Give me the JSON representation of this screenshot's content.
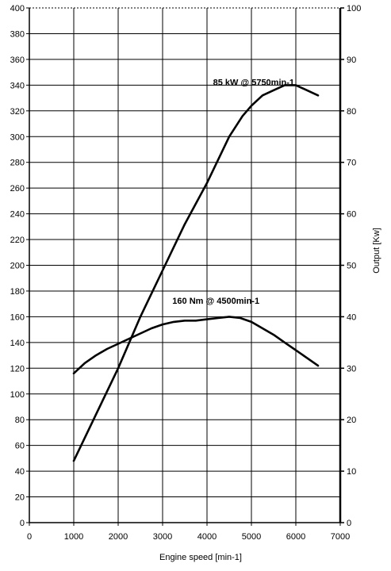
{
  "chart_data": {
    "type": "line",
    "xlabel": "Engine speed [min-1]",
    "ylabel": "",
    "y2label": "Output [Kw]",
    "xlim": [
      0,
      7000
    ],
    "ylim": [
      0,
      400
    ],
    "y2lim": [
      0,
      100
    ],
    "x_ticks": [
      0,
      1000,
      2000,
      3000,
      4000,
      5000,
      6000,
      7000
    ],
    "y_ticks": [
      0,
      20,
      40,
      60,
      80,
      100,
      120,
      140,
      160,
      180,
      200,
      220,
      240,
      260,
      280,
      300,
      320,
      340,
      360,
      380,
      400
    ],
    "y2_ticks": [
      0,
      10,
      20,
      30,
      40,
      50,
      60,
      70,
      80,
      90,
      100
    ],
    "grid": true,
    "series": [
      {
        "axis": "right",
        "x": [
          1000,
          1500,
          2000,
          2500,
          3000,
          3500,
          4000,
          4500,
          4800,
          5000,
          5250,
          5500,
          5750,
          6000,
          6250,
          6500
        ],
        "y": [
          12,
          21,
          30,
          40,
          49,
          58,
          66,
          75,
          79,
          81,
          83,
          84,
          85,
          85,
          84,
          83
        ]
      },
      {
        "axis": "left",
        "x": [
          1000,
          1250,
          1500,
          1750,
          2000,
          2250,
          2500,
          2750,
          3000,
          3250,
          3500,
          3750,
          4000,
          4250,
          4500,
          4750,
          5000,
          5250,
          5500,
          5750,
          6000,
          6250,
          6500
        ],
        "y": [
          116,
          124,
          130,
          135,
          139,
          143,
          147,
          151,
          154,
          156,
          157,
          157,
          158,
          159,
          160,
          159,
          156,
          151,
          146,
          140,
          134,
          128,
          122
        ]
      }
    ],
    "annotations": [
      {
        "text": "85 kW @ 5750min-1",
        "x": 5050,
        "y": 85
      },
      {
        "text": "160 Nm @ 4500min-1",
        "x": 4200,
        "y": 170
      }
    ]
  }
}
